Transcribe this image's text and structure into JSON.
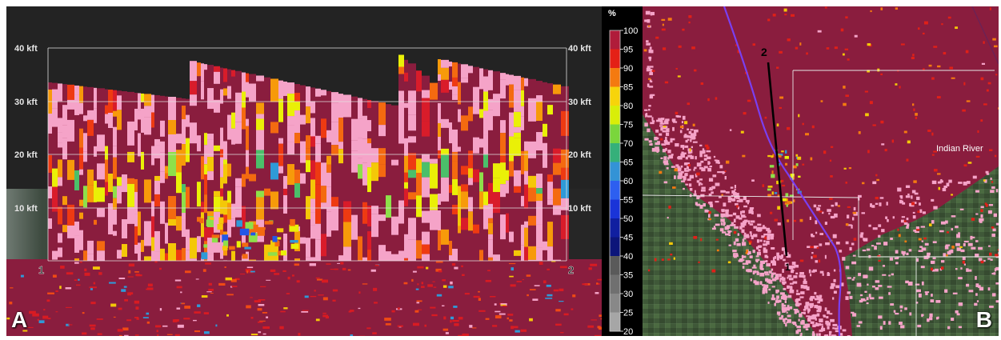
{
  "panel_a": {
    "letter": "A",
    "height_labels": [
      "40 kft",
      "30 kft",
      "20 kft",
      "10 kft"
    ],
    "endpoint_labels": [
      "1",
      "2"
    ]
  },
  "panel_b": {
    "letter": "B",
    "place_label": "Indian River",
    "cross_section_labels": [
      "1",
      "2"
    ]
  },
  "colorbar": {
    "unit": "%",
    "ticks": [
      "100",
      "95",
      "90",
      "85",
      "80",
      "75",
      "70",
      "65",
      "60",
      "55",
      "50",
      "45",
      "40",
      "35",
      "30",
      "25",
      "20"
    ],
    "value_range": [
      20,
      100
    ]
  },
  "colors": {
    "background_field": "#8a1d3e",
    "pink_bins": "#f5a3c8",
    "road": "#7a3ff0",
    "cross_section_line": "#000000",
    "boundary_lines": "#dcdcdc"
  }
}
